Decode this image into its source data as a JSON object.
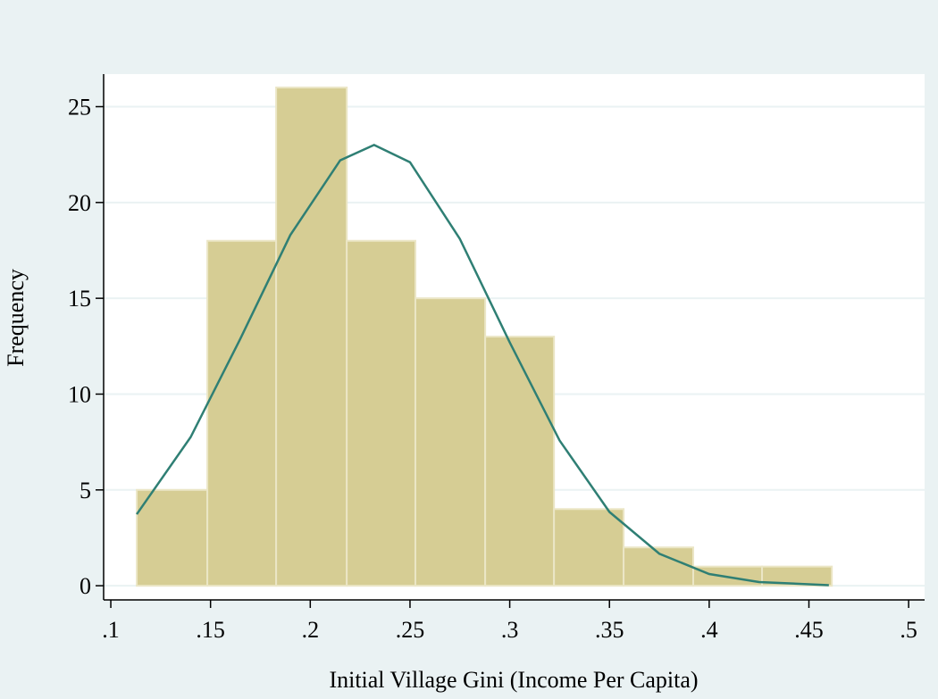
{
  "chart_data": {
    "type": "histogram",
    "xlabel": "Initial Village Gini (Income Per Capita)",
    "ylabel": "Frequency",
    "bins": [
      0.113,
      0.1484,
      0.1829,
      0.2183,
      0.2527,
      0.2877,
      0.3222,
      0.3571,
      0.392,
      0.4265,
      0.4615
    ],
    "values": [
      5,
      18,
      26,
      18,
      15,
      13,
      4,
      2,
      1,
      1
    ],
    "color": "#d6cd94",
    "density_curve": {
      "color": "#2f7f74",
      "x": [
        0.113,
        0.14,
        0.165,
        0.19,
        0.215,
        0.232,
        0.25,
        0.275,
        0.3,
        0.325,
        0.35,
        0.375,
        0.4,
        0.425,
        0.46
      ],
      "values": [
        3.73,
        7.75,
        12.9,
        18.3,
        22.2,
        23,
        22.1,
        18.1,
        12.7,
        7.58,
        3.85,
        1.67,
        0.61,
        0.19,
        0.03
      ]
    },
    "xlim": [
      0.0964,
      0.508
    ],
    "ylim": [
      -0.74,
      26.7
    ],
    "xticks": [
      {
        "value": 0.1,
        "label": ".1"
      },
      {
        "value": 0.15,
        "label": ".15"
      },
      {
        "value": 0.2,
        "label": ".2"
      },
      {
        "value": 0.25,
        "label": ".25"
      },
      {
        "value": 0.3,
        "label": ".3"
      },
      {
        "value": 0.35,
        "label": ".35"
      },
      {
        "value": 0.4,
        "label": ".4"
      },
      {
        "value": 0.45,
        "label": ".45"
      },
      {
        "value": 0.5,
        "label": ".5"
      }
    ],
    "yticks": [
      0,
      5,
      10,
      15,
      20,
      25
    ],
    "grid": true
  }
}
